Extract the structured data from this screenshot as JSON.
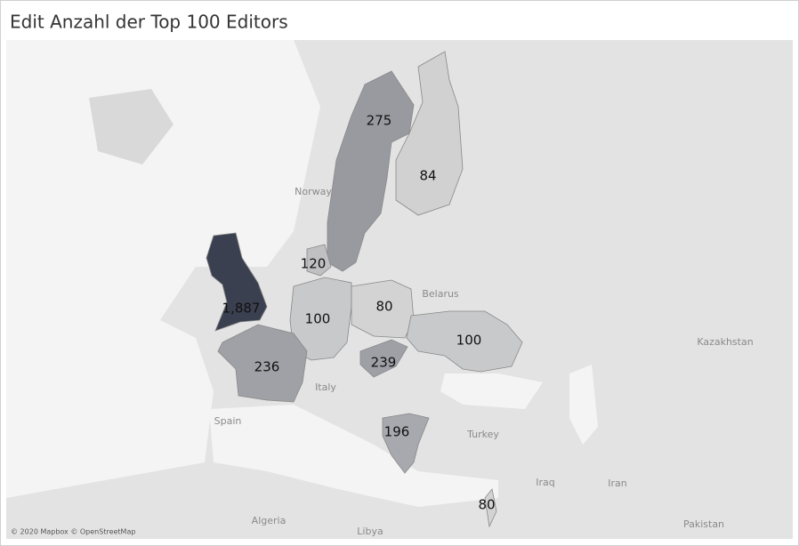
{
  "chart_data": {
    "type": "choropleth",
    "title": "Edit Anzahl der Top 100 Editors",
    "values": [
      1887,
      275,
      84,
      120,
      100,
      80,
      100,
      236,
      239,
      196,
      80
    ],
    "value_labels": [
      "1,887",
      "275",
      "84",
      "120",
      "100",
      "80",
      "100",
      "236",
      "239",
      "196",
      "80"
    ],
    "color_range": [
      "#d3d3d3",
      "#3b4050"
    ],
    "color_scale": "log",
    "place_labels": [
      "Norway",
      "Belarus",
      "Kazakhstan",
      "Italy",
      "Spain",
      "Turkey",
      "Iraq",
      "Iran",
      "Algeria",
      "Libya",
      "Pakistan"
    ],
    "attribution": "© 2020 Mapbox © OpenStreetMap"
  }
}
